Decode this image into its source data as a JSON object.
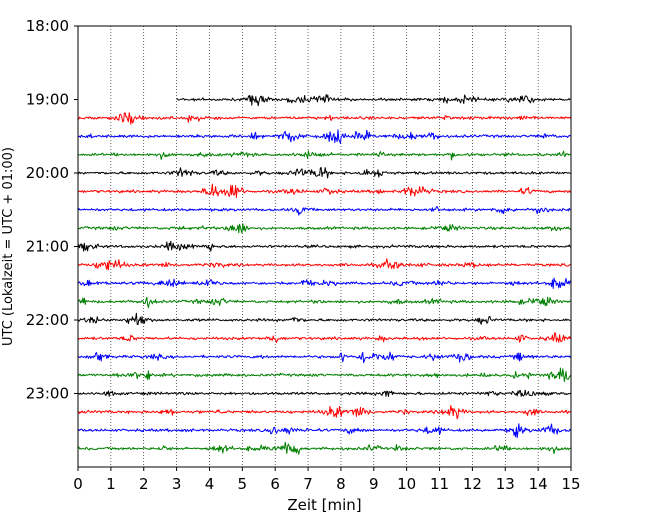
{
  "chart_data": {
    "type": "line",
    "title": "",
    "xlabel": "Zeit  [min]",
    "ylabel": "UTC (Lokalzeit = UTC + 01:00)",
    "xlim": [
      0,
      15
    ],
    "ylim_minutes_utc": [
      1080,
      1440
    ],
    "x_ticks": [
      "0",
      "1",
      "2",
      "3",
      "4",
      "5",
      "6",
      "7",
      "8",
      "9",
      "10",
      "11",
      "12",
      "13",
      "14",
      "15"
    ],
    "y_ticks": [
      {
        "minute_of_day": 1080,
        "label": "18:00"
      },
      {
        "minute_of_day": 1140,
        "label": "19:00"
      },
      {
        "minute_of_day": 1200,
        "label": "20:00"
      },
      {
        "minute_of_day": 1260,
        "label": "21:00"
      },
      {
        "minute_of_day": 1320,
        "label": "22:00"
      },
      {
        "minute_of_day": 1380,
        "label": "23:00"
      }
    ],
    "grid": "vertical dotted at each minute",
    "trace_colors": [
      "#000000",
      "#ff0000",
      "#0000ff",
      "#008000"
    ],
    "traces": [
      {
        "start": "19:00",
        "color": "#000000",
        "x_start_min": 3.0
      },
      {
        "start": "19:15",
        "color": "#ff0000",
        "x_start_min": 0
      },
      {
        "start": "19:30",
        "color": "#0000ff",
        "x_start_min": 0
      },
      {
        "start": "19:45",
        "color": "#008000",
        "x_start_min": 0
      },
      {
        "start": "20:00",
        "color": "#000000",
        "x_start_min": 0
      },
      {
        "start": "20:15",
        "color": "#ff0000",
        "x_start_min": 0
      },
      {
        "start": "20:30",
        "color": "#0000ff",
        "x_start_min": 0
      },
      {
        "start": "20:45",
        "color": "#008000",
        "x_start_min": 0
      },
      {
        "start": "21:00",
        "color": "#000000",
        "x_start_min": 0
      },
      {
        "start": "21:15",
        "color": "#ff0000",
        "x_start_min": 0
      },
      {
        "start": "21:30",
        "color": "#0000ff",
        "x_start_min": 0
      },
      {
        "start": "21:45",
        "color": "#008000",
        "x_start_min": 0
      },
      {
        "start": "22:00",
        "color": "#000000",
        "x_start_min": 0
      },
      {
        "start": "22:15",
        "color": "#ff0000",
        "x_start_min": 0
      },
      {
        "start": "22:30",
        "color": "#0000ff",
        "x_start_min": 0
      },
      {
        "start": "22:45",
        "color": "#008000",
        "x_start_min": 0
      },
      {
        "start": "23:00",
        "color": "#000000",
        "x_start_min": 0
      },
      {
        "start": "23:15",
        "color": "#ff0000",
        "x_start_min": 0
      },
      {
        "start": "23:30",
        "color": "#0000ff",
        "x_start_min": 0
      },
      {
        "start": "23:45",
        "color": "#008000",
        "x_start_min": 0
      }
    ]
  }
}
